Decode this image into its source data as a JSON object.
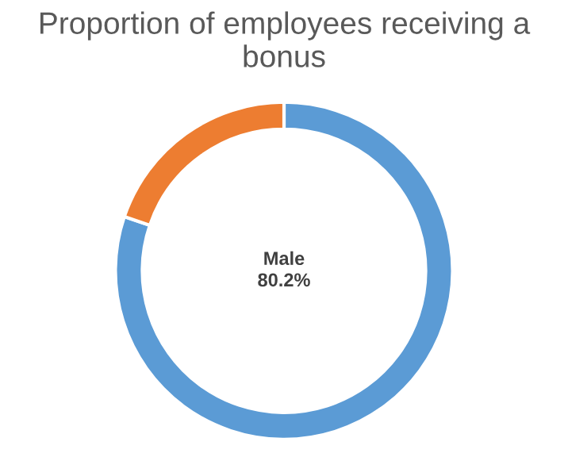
{
  "chart_data": {
    "type": "donut",
    "title": "Proportion of employees receiving a bonus",
    "categories": [
      "Male",
      null
    ],
    "values": [
      80.2,
      19.8
    ],
    "colors": [
      "#5b9bd5",
      "#ed7d31"
    ],
    "value_labels": [
      "80.2%",
      null
    ],
    "legend": false
  }
}
